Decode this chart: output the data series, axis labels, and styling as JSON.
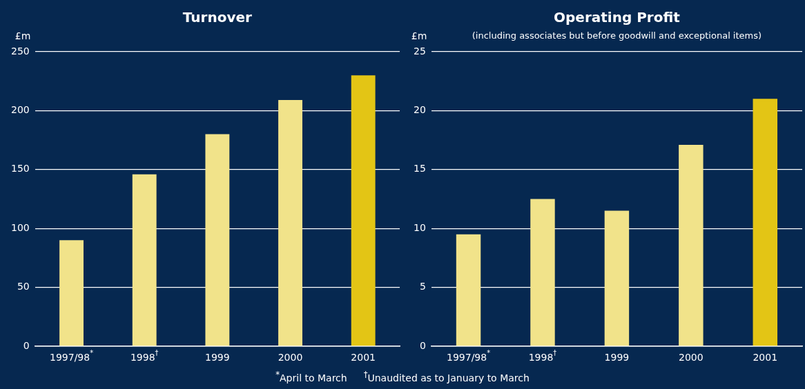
{
  "chart_data": [
    {
      "type": "bar",
      "title": "Turnover",
      "ylabel": "£m",
      "categories": [
        "1997/98$^{*}$",
        "1998$^{†}$",
        "1999",
        "2000",
        "2001"
      ],
      "values": [
        90,
        146,
        180,
        209,
        230
      ],
      "colors": [
        "#f1e38a",
        "#f1e38a",
        "#f1e38a",
        "#f1e38a",
        "#e3c515"
      ],
      "ylim": [
        0,
        250
      ],
      "yticks": [
        0,
        50,
        100,
        150,
        200,
        250
      ],
      "grid": "y",
      "legend": false,
      "annotations": [
        "$^{*}$April to March",
        "$^{†}$Unaudited as to January to March"
      ]
    },
    {
      "type": "bar",
      "title": "Operating Profit",
      "subtitle": "(including associates but before goodwill and exceptional items)",
      "ylabel": "£m",
      "categories": [
        "1997/98$^{*}$",
        "1998$^{†}$",
        "1999",
        "2000",
        "2001"
      ],
      "values": [
        9.5,
        12.5,
        11.5,
        17.1,
        21.0
      ],
      "colors": [
        "#f1e38a",
        "#f1e38a",
        "#f1e38a",
        "#f1e38a",
        "#e3c515"
      ],
      "ylim": [
        0,
        25
      ],
      "yticks": [
        0,
        5,
        10,
        15,
        20,
        25
      ],
      "grid": "y",
      "legend": false
    }
  ]
}
